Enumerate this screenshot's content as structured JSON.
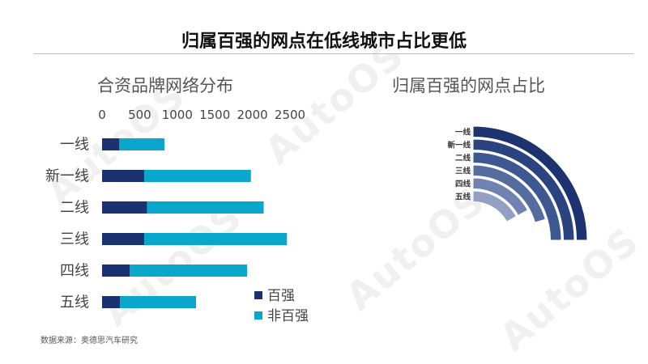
{
  "page": {
    "title": "归属百强的网点在低线城市占比更低",
    "source": "数据来源：奥德思汽车研究",
    "watermark": "AutoOS"
  },
  "colors": {
    "top100": "#1a3370",
    "non_top100": "#0aa6cc",
    "ring_shades": [
      "#1c3370",
      "#2b447f",
      "#3d5790",
      "#556c9f",
      "#7082b0",
      "#93a0c4"
    ]
  },
  "chart_data": [
    {
      "type": "bar",
      "orientation": "horizontal",
      "stacked": true,
      "title": "合资品牌网络分布",
      "categories": [
        "一线",
        "新一线",
        "二线",
        "三线",
        "四线",
        "五线"
      ],
      "series": [
        {
          "name": "百强",
          "values": [
            230,
            560,
            600,
            560,
            370,
            240
          ]
        },
        {
          "name": "非百强",
          "values": [
            600,
            1420,
            1550,
            1900,
            1560,
            1010
          ]
        }
      ],
      "xaxis_position": "top",
      "xlim": [
        0,
        2500
      ],
      "xticks": [
        0,
        500,
        1000,
        1500,
        2000,
        2500
      ],
      "grid": false,
      "legend": "bottom-right"
    },
    {
      "type": "radial-bar",
      "title": "归属百强的网点占比",
      "categories": [
        "一线",
        "新一线",
        "二线",
        "三线",
        "四线",
        "五线"
      ],
      "values": [
        0.28,
        0.28,
        0.28,
        0.23,
        0.19,
        0.19
      ],
      "max": 0.28,
      "legend": "none"
    }
  ]
}
